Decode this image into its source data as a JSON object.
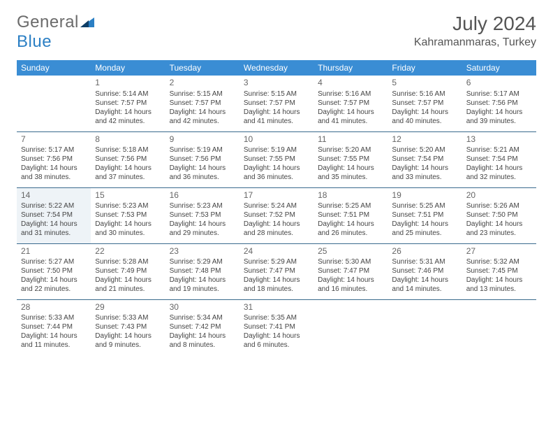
{
  "logo": {
    "word1": "General",
    "word2": "Blue"
  },
  "title": "July 2024",
  "location": "Kahramanmaras, Turkey",
  "colors": {
    "header_bg": "#3a8dd4",
    "header_text": "#ffffff",
    "row_border": "#3a6a8d",
    "highlight_bg": "#eef3f7",
    "logo_gray": "#6b6b6b",
    "logo_blue": "#2b7fc4"
  },
  "weekdays": [
    "Sunday",
    "Monday",
    "Tuesday",
    "Wednesday",
    "Thursday",
    "Friday",
    "Saturday"
  ],
  "start_offset": 1,
  "days": [
    {
      "n": "1",
      "sr": "5:14 AM",
      "ss": "7:57 PM",
      "dl": "14 hours and 42 minutes."
    },
    {
      "n": "2",
      "sr": "5:15 AM",
      "ss": "7:57 PM",
      "dl": "14 hours and 42 minutes."
    },
    {
      "n": "3",
      "sr": "5:15 AM",
      "ss": "7:57 PM",
      "dl": "14 hours and 41 minutes."
    },
    {
      "n": "4",
      "sr": "5:16 AM",
      "ss": "7:57 PM",
      "dl": "14 hours and 41 minutes."
    },
    {
      "n": "5",
      "sr": "5:16 AM",
      "ss": "7:57 PM",
      "dl": "14 hours and 40 minutes."
    },
    {
      "n": "6",
      "sr": "5:17 AM",
      "ss": "7:56 PM",
      "dl": "14 hours and 39 minutes."
    },
    {
      "n": "7",
      "sr": "5:17 AM",
      "ss": "7:56 PM",
      "dl": "14 hours and 38 minutes."
    },
    {
      "n": "8",
      "sr": "5:18 AM",
      "ss": "7:56 PM",
      "dl": "14 hours and 37 minutes."
    },
    {
      "n": "9",
      "sr": "5:19 AM",
      "ss": "7:56 PM",
      "dl": "14 hours and 36 minutes."
    },
    {
      "n": "10",
      "sr": "5:19 AM",
      "ss": "7:55 PM",
      "dl": "14 hours and 36 minutes."
    },
    {
      "n": "11",
      "sr": "5:20 AM",
      "ss": "7:55 PM",
      "dl": "14 hours and 35 minutes."
    },
    {
      "n": "12",
      "sr": "5:20 AM",
      "ss": "7:54 PM",
      "dl": "14 hours and 33 minutes."
    },
    {
      "n": "13",
      "sr": "5:21 AM",
      "ss": "7:54 PM",
      "dl": "14 hours and 32 minutes."
    },
    {
      "n": "14",
      "sr": "5:22 AM",
      "ss": "7:54 PM",
      "dl": "14 hours and 31 minutes.",
      "hl": true
    },
    {
      "n": "15",
      "sr": "5:23 AM",
      "ss": "7:53 PM",
      "dl": "14 hours and 30 minutes."
    },
    {
      "n": "16",
      "sr": "5:23 AM",
      "ss": "7:53 PM",
      "dl": "14 hours and 29 minutes."
    },
    {
      "n": "17",
      "sr": "5:24 AM",
      "ss": "7:52 PM",
      "dl": "14 hours and 28 minutes."
    },
    {
      "n": "18",
      "sr": "5:25 AM",
      "ss": "7:51 PM",
      "dl": "14 hours and 26 minutes."
    },
    {
      "n": "19",
      "sr": "5:25 AM",
      "ss": "7:51 PM",
      "dl": "14 hours and 25 minutes."
    },
    {
      "n": "20",
      "sr": "5:26 AM",
      "ss": "7:50 PM",
      "dl": "14 hours and 23 minutes."
    },
    {
      "n": "21",
      "sr": "5:27 AM",
      "ss": "7:50 PM",
      "dl": "14 hours and 22 minutes."
    },
    {
      "n": "22",
      "sr": "5:28 AM",
      "ss": "7:49 PM",
      "dl": "14 hours and 21 minutes."
    },
    {
      "n": "23",
      "sr": "5:29 AM",
      "ss": "7:48 PM",
      "dl": "14 hours and 19 minutes."
    },
    {
      "n": "24",
      "sr": "5:29 AM",
      "ss": "7:47 PM",
      "dl": "14 hours and 18 minutes."
    },
    {
      "n": "25",
      "sr": "5:30 AM",
      "ss": "7:47 PM",
      "dl": "14 hours and 16 minutes."
    },
    {
      "n": "26",
      "sr": "5:31 AM",
      "ss": "7:46 PM",
      "dl": "14 hours and 14 minutes."
    },
    {
      "n": "27",
      "sr": "5:32 AM",
      "ss": "7:45 PM",
      "dl": "14 hours and 13 minutes."
    },
    {
      "n": "28",
      "sr": "5:33 AM",
      "ss": "7:44 PM",
      "dl": "14 hours and 11 minutes."
    },
    {
      "n": "29",
      "sr": "5:33 AM",
      "ss": "7:43 PM",
      "dl": "14 hours and 9 minutes."
    },
    {
      "n": "30",
      "sr": "5:34 AM",
      "ss": "7:42 PM",
      "dl": "14 hours and 8 minutes."
    },
    {
      "n": "31",
      "sr": "5:35 AM",
      "ss": "7:41 PM",
      "dl": "14 hours and 6 minutes."
    }
  ],
  "labels": {
    "sunrise": "Sunrise: ",
    "sunset": "Sunset: ",
    "daylight": "Daylight: "
  }
}
